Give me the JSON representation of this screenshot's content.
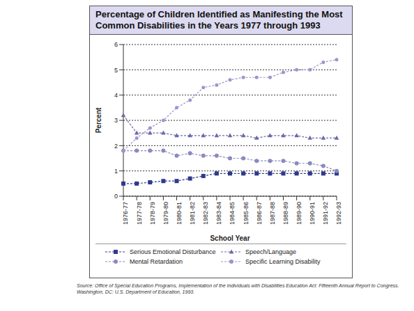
{
  "chart_data": {
    "type": "line",
    "title": "Percentage of Children Identified as Manifesting the Most Common Disabilities in the Years 1977 through 1993",
    "x_label": "School Year",
    "y_label": "Percent",
    "source": "Source: Office of Special Education Programs, Implementation of the Individuals with Disabilities Education Act: Fifteenth Annual Report to Congress. Washington, DC: U.S. Department of Education, 1993.",
    "categories": [
      "1976-77",
      "1977-78",
      "1978-79",
      "1979-80",
      "1980-81",
      "1981-82",
      "1982-83",
      "1983-84",
      "1984-85",
      "1985-86",
      "1986-87",
      "1987-88",
      "1988-89",
      "1989-90",
      "1990-91",
      "1991-92",
      "1992-93"
    ],
    "series": [
      {
        "name": "Serious Emotional Disturbance",
        "color": "#2e3a8c",
        "marker": "square",
        "line_style": "dashed",
        "values": [
          0.5,
          0.5,
          0.55,
          0.6,
          0.6,
          0.7,
          0.8,
          0.9,
          0.9,
          0.9,
          0.9,
          0.9,
          0.9,
          0.9,
          0.9,
          0.9,
          0.9
        ]
      },
      {
        "name": "Speech/Language",
        "color": "#6a6aa8",
        "marker": "triangle",
        "line_style": "dashed",
        "values": [
          3.2,
          2.5,
          2.5,
          2.5,
          2.4,
          2.4,
          2.4,
          2.4,
          2.4,
          2.4,
          2.3,
          2.4,
          2.4,
          2.4,
          2.3,
          2.3,
          2.3
        ]
      },
      {
        "name": "Mental Retardation",
        "color": "#8a8ac0",
        "marker": "circle",
        "line_style": "dashed",
        "values": [
          1.8,
          1.8,
          1.8,
          1.8,
          1.6,
          1.7,
          1.6,
          1.6,
          1.5,
          1.5,
          1.4,
          1.4,
          1.4,
          1.3,
          1.3,
          1.2,
          1.0
        ]
      },
      {
        "name": "Specific Learning Disability",
        "color": "#a093cc",
        "marker": "circle",
        "line_style": "dashed",
        "values": [
          1.8,
          2.3,
          2.7,
          3.0,
          3.5,
          3.8,
          4.3,
          4.4,
          4.6,
          4.7,
          4.7,
          4.7,
          4.9,
          5.0,
          5.0,
          5.3,
          5.4
        ]
      }
    ],
    "ylim": [
      0,
      6
    ],
    "yticks": [
      0,
      1,
      2,
      3,
      4,
      5,
      6
    ],
    "grid": true,
    "legend": "bottom"
  }
}
